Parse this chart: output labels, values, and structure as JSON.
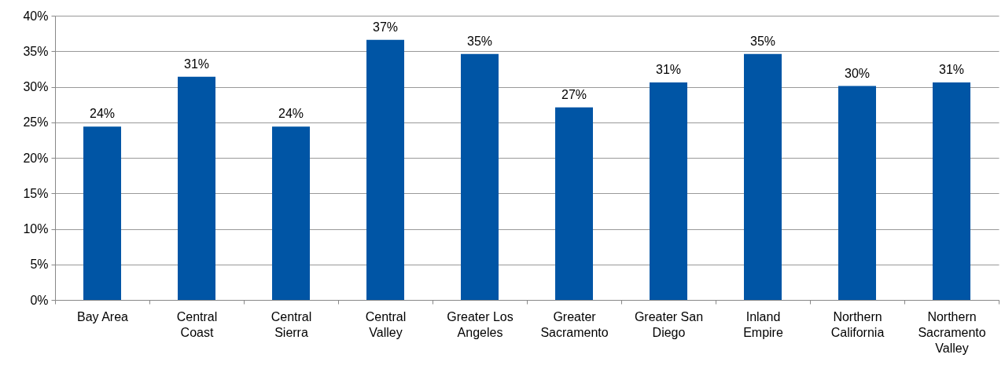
{
  "chart_data": {
    "type": "bar",
    "categories": [
      "Bay Area",
      "Central Coast",
      "Central Sierra",
      "Central Valley",
      "Greater Los Angeles",
      "Greater Sacramento",
      "Greater San Diego",
      "Inland Empire",
      "Northern California",
      "Northern Sacramento Valley"
    ],
    "values": [
      24.4,
      31.4,
      24.4,
      36.6,
      34.6,
      27.1,
      30.6,
      34.6,
      30.1,
      30.6
    ],
    "value_labels": [
      "24%",
      "31%",
      "24%",
      "37%",
      "35%",
      "27%",
      "31%",
      "35%",
      "30%",
      "31%"
    ],
    "color": "#0055a5",
    "ylim": [
      0,
      40
    ],
    "yticks": [
      {
        "value": 0,
        "label": "0%"
      },
      {
        "value": 5,
        "label": "5%"
      },
      {
        "value": 10,
        "label": "10%"
      },
      {
        "value": 15,
        "label": "15%"
      },
      {
        "value": 20,
        "label": "20%"
      },
      {
        "value": 25,
        "label": "25%"
      },
      {
        "value": 30,
        "label": "30%"
      },
      {
        "value": 35,
        "label": "35%"
      },
      {
        "value": 40,
        "label": "40%"
      }
    ],
    "grid": "y"
  }
}
